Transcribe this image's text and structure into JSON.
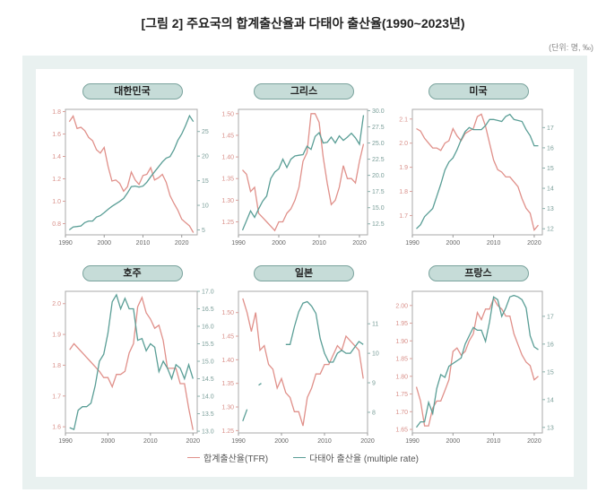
{
  "title": "[그림 2] 주요국의 합계출산율과 다태아 출산율(1990~2023년)",
  "unit": "(단위: 명, ‰)",
  "legend": {
    "tfr": "합계출산율(TFR)",
    "mr": "다태아 출산율 (multiple rate)"
  },
  "colors": {
    "tfr": "#e0908a",
    "mr": "#5a9e96",
    "frame": "#e9f1f0",
    "pill": "#c6dcd8"
  },
  "chart_data": [
    {
      "type": "line",
      "title": "대한민국",
      "x_ticks": [
        1990,
        2000,
        2010,
        2020
      ],
      "xlim": [
        1990,
        2024
      ],
      "left": {
        "ylim": [
          0.7,
          1.82
        ],
        "ticks": [
          "0.8",
          "1.0",
          "1.2",
          "1.4",
          "1.6",
          "1.8"
        ]
      },
      "right": {
        "ylim": [
          4,
          29.5
        ],
        "ticks": [
          "5",
          "10",
          "15",
          "20",
          "25"
        ]
      },
      "x_start": 1991,
      "tfr": [
        1.71,
        1.76,
        1.65,
        1.66,
        1.63,
        1.57,
        1.54,
        1.46,
        1.43,
        1.48,
        1.31,
        1.18,
        1.19,
        1.16,
        1.09,
        1.13,
        1.26,
        1.19,
        1.15,
        1.23,
        1.24,
        1.3,
        1.19,
        1.21,
        1.24,
        1.17,
        1.05,
        0.98,
        0.92,
        0.84,
        0.81,
        0.78,
        0.72
      ],
      "mr": [
        5,
        5.6,
        5.7,
        5.8,
        6.5,
        6.8,
        6.8,
        7.6,
        7.9,
        8.5,
        9.2,
        9.8,
        10.3,
        10.8,
        11.4,
        12.5,
        13.8,
        13.9,
        13.7,
        13.9,
        14.7,
        15.8,
        16.8,
        17.8,
        18.8,
        19.6,
        19.9,
        21.3,
        23.2,
        24.5,
        26.2,
        28.2,
        27.0
      ]
    },
    {
      "type": "line",
      "title": "그리스",
      "x_ticks": [
        1990,
        2000,
        2010,
        2020
      ],
      "xlim": [
        1990,
        2022
      ],
      "left": {
        "ylim": [
          1.22,
          1.51
        ],
        "ticks": [
          "1.25",
          "1.30",
          "1.35",
          "1.40",
          "1.45",
          "1.50"
        ]
      },
      "right": {
        "ylim": [
          10.8,
          30.2
        ],
        "ticks": [
          "12.5",
          "15.0",
          "17.5",
          "20.0",
          "22.5",
          "25.0",
          "27.5",
          "30.0"
        ]
      },
      "x_start": 1991,
      "tfr": [
        1.37,
        1.36,
        1.32,
        1.33,
        1.27,
        1.26,
        1.25,
        1.24,
        1.23,
        1.25,
        1.25,
        1.27,
        1.28,
        1.3,
        1.33,
        1.39,
        1.41,
        1.5,
        1.5,
        1.48,
        1.4,
        1.34,
        1.29,
        1.3,
        1.33,
        1.38,
        1.35,
        1.35,
        1.34,
        1.39,
        1.43
      ],
      "mr": [
        11.5,
        13,
        14.5,
        13.5,
        14.8,
        16,
        16.8,
        19.5,
        20.5,
        21,
        22.5,
        21.2,
        22.5,
        23,
        23.1,
        23.2,
        24.5,
        24,
        26,
        26.6,
        25,
        25.1,
        25.9,
        25,
        26.1,
        25.4,
        25.9,
        26.5,
        25.8,
        24.8,
        29.3
      ]
    },
    {
      "type": "line",
      "title": "미국",
      "x_ticks": [
        1990,
        2000,
        2010,
        2020
      ],
      "xlim": [
        1990,
        2022
      ],
      "left": {
        "ylim": [
          1.62,
          2.14
        ],
        "ticks": [
          "1.7",
          "1.8",
          "1.9",
          "2.0",
          "2.1"
        ]
      },
      "right": {
        "ylim": [
          11.7,
          17.9
        ],
        "ticks": [
          "12",
          "13",
          "14",
          "15",
          "16",
          "17"
        ]
      },
      "x_start": 1991,
      "tfr": [
        2.06,
        2.05,
        2.02,
        2.0,
        1.98,
        1.98,
        1.97,
        2.0,
        2.01,
        2.06,
        2.03,
        2.01,
        2.04,
        2.05,
        2.06,
        2.11,
        2.12,
        2.07,
        2.0,
        1.93,
        1.89,
        1.88,
        1.86,
        1.86,
        1.84,
        1.82,
        1.77,
        1.73,
        1.71,
        1.64,
        1.66
      ],
      "mr": [
        12,
        12.2,
        12.6,
        12.8,
        13,
        13.6,
        14.2,
        14.9,
        15.3,
        15.5,
        15.9,
        16.4,
        16.8,
        17,
        16.9,
        16.9,
        16.9,
        17.1,
        17.4,
        17.4,
        17.35,
        17.3,
        17.55,
        17.65,
        17.4,
        17.35,
        17.3,
        16.9,
        16.6,
        16.1,
        16.1
      ]
    },
    {
      "type": "line",
      "title": "호주",
      "x_ticks": [
        1990,
        2000,
        2010,
        2020
      ],
      "xlim": [
        1990,
        2021
      ],
      "left": {
        "ylim": [
          1.58,
          2.04
        ],
        "ticks": [
          "1.6",
          "1.7",
          "1.8",
          "1.9",
          "2.0"
        ]
      },
      "right": {
        "ylim": [
          12.95,
          17.0
        ],
        "ticks": [
          "13.0",
          "13.5",
          "14.0",
          "14.5",
          "15.0",
          "15.5",
          "16.0",
          "16.5",
          "17.0"
        ]
      },
      "x_start": 1991,
      "tfr": [
        1.85,
        1.87,
        1.855,
        1.84,
        1.825,
        1.81,
        1.795,
        1.78,
        1.76,
        1.76,
        1.73,
        1.77,
        1.77,
        1.78,
        1.84,
        1.87,
        1.99,
        2.02,
        1.97,
        1.95,
        1.92,
        1.93,
        1.88,
        1.79,
        1.79,
        1.79,
        1.74,
        1.74,
        1.66,
        1.59
      ],
      "mr": [
        13.1,
        13.05,
        13.6,
        13.7,
        13.7,
        13.8,
        14.3,
        15,
        15.2,
        15.8,
        16.7,
        16.9,
        16.5,
        16.8,
        16.5,
        16.5,
        15.6,
        15.65,
        15.3,
        15.5,
        15.4,
        14.7,
        15.0,
        14.8,
        14.5,
        14.9,
        14.8,
        14.5,
        14.9,
        14.5
      ]
    },
    {
      "type": "line",
      "title": "일본",
      "x_ticks": [
        1990,
        2000,
        2010,
        2020
      ],
      "xlim": [
        1990,
        2020
      ],
      "left": {
        "ylim": [
          1.245,
          1.545
        ],
        "ticks": [
          "1.25",
          "1.30",
          "1.35",
          "1.40",
          "1.45",
          "1.50"
        ]
      },
      "right": {
        "ylim": [
          7.3,
          12.1
        ],
        "ticks": [
          "8",
          "9",
          "10",
          "11"
        ]
      },
      "x_start": 1991,
      "tfr": [
        1.53,
        1.5,
        1.46,
        1.5,
        1.42,
        1.43,
        1.39,
        1.38,
        1.34,
        1.36,
        1.33,
        1.32,
        1.29,
        1.29,
        1.26,
        1.32,
        1.34,
        1.37,
        1.37,
        1.39,
        1.39,
        1.41,
        1.43,
        1.42,
        1.45,
        1.44,
        1.43,
        1.42,
        1.36
      ],
      "mr": [
        7.7,
        8.1,
        null,
        null,
        8.95,
        null,
        null,
        null,
        null,
        null,
        10.3,
        10.3,
        10.9,
        11.4,
        11.7,
        11.75,
        11.6,
        11.35,
        10.5,
        10.0,
        9.7,
        9.7,
        10.0,
        10.1,
        10.0,
        10.0,
        10.2,
        10.4,
        10.3
      ]
    },
    {
      "type": "line",
      "title": "프랑스",
      "x_ticks": [
        1990,
        2000,
        2010,
        2020
      ],
      "xlim": [
        1990,
        2022
      ],
      "left": {
        "ylim": [
          1.64,
          2.04
        ],
        "ticks": [
          "1.65",
          "1.70",
          "1.75",
          "1.80",
          "1.85",
          "1.90",
          "1.95",
          "2.00"
        ]
      },
      "right": {
        "ylim": [
          12.8,
          17.9
        ],
        "ticks": [
          "13",
          "14",
          "15",
          "16",
          "17"
        ]
      },
      "x_start": 1991,
      "tfr": [
        1.77,
        1.73,
        1.66,
        1.66,
        1.71,
        1.73,
        1.73,
        1.76,
        1.79,
        1.87,
        1.88,
        1.86,
        1.87,
        1.9,
        1.92,
        1.98,
        1.96,
        1.99,
        1.99,
        2.02,
        2.0,
        1.99,
        1.97,
        1.97,
        1.92,
        1.89,
        1.86,
        1.84,
        1.83,
        1.79,
        1.8
      ],
      "mr": [
        13,
        13.2,
        13.2,
        13.9,
        13.5,
        14.4,
        14.9,
        14.8,
        15.2,
        15.3,
        15.4,
        15.5,
        16,
        16.3,
        16.6,
        16.5,
        16.5,
        16.1,
        16.8,
        17.7,
        17.6,
        17.0,
        17.3,
        17.7,
        17.75,
        17.7,
        17.6,
        17.3,
        16.3,
        15.9,
        15.8
      ]
    }
  ]
}
